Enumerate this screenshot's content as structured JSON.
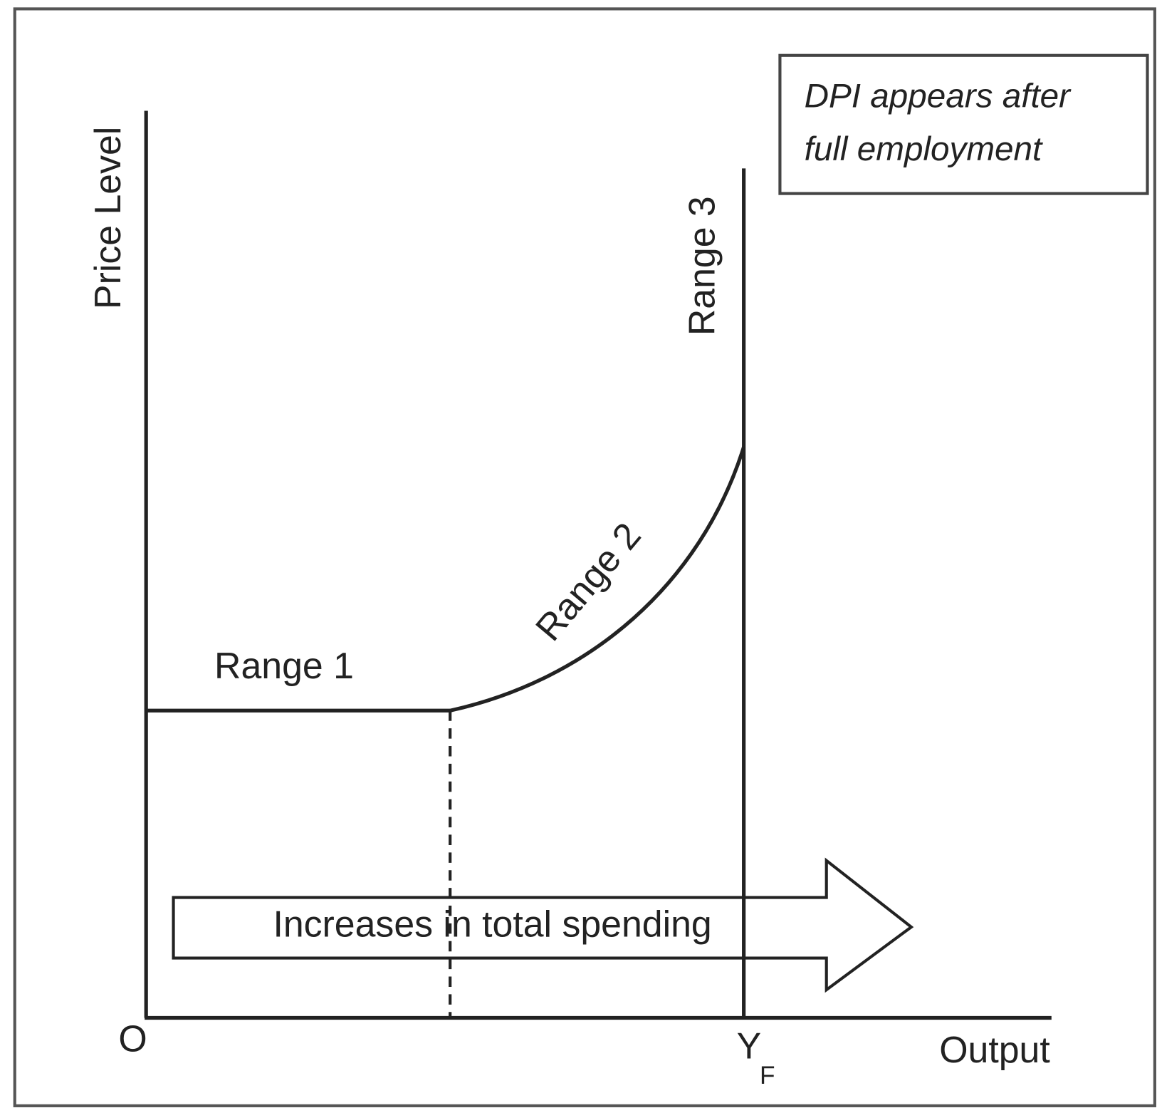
{
  "diagram": {
    "y_axis_label": "Price Level",
    "x_axis_label": "Output",
    "origin_label": "O",
    "full_employment_label": {
      "main": "Y",
      "subscript": "F"
    },
    "ranges": [
      "Range 1",
      "Range 2",
      "Range 3"
    ],
    "arrow_label": "Increases in total spending",
    "note": [
      "DPI appears after",
      "full employment"
    ]
  }
}
